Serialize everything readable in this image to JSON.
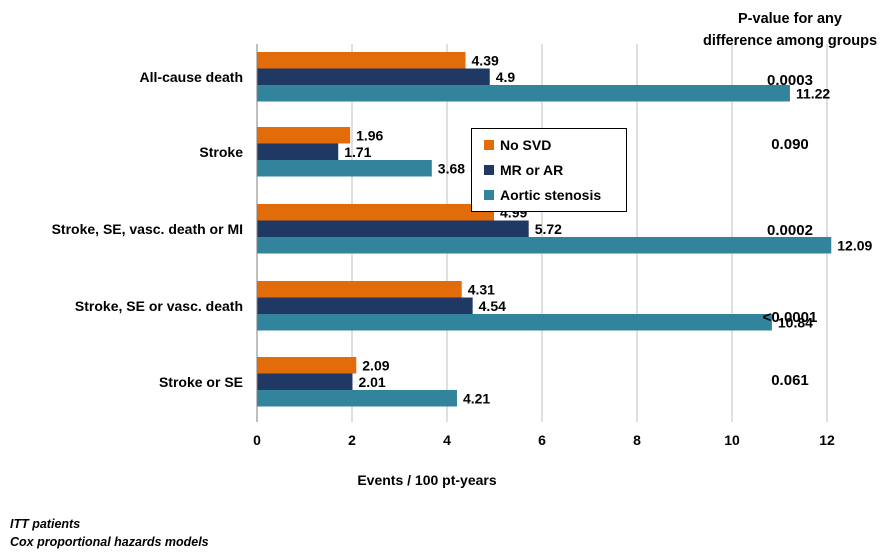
{
  "chart_data": {
    "type": "bar",
    "orientation": "horizontal",
    "categories": [
      "All-cause death",
      "Stroke",
      "Stroke, SE, vasc. death or MI",
      "Stroke, SE or vasc. death",
      "Stroke or SE"
    ],
    "series": [
      {
        "name": "No SVD",
        "color": "#E36C0A",
        "values": [
          4.39,
          1.96,
          4.99,
          4.31,
          2.09
        ]
      },
      {
        "name": "MR or AR",
        "color": "#1F3864",
        "values": [
          4.9,
          1.71,
          5.72,
          4.54,
          2.01
        ]
      },
      {
        "name": "Aortic stenosis",
        "color": "#31849B",
        "values": [
          11.22,
          3.68,
          12.09,
          10.84,
          4.21
        ]
      }
    ],
    "data_labels": [
      [
        "4.39",
        "4.9",
        "11.22"
      ],
      [
        "1.96",
        "1.71",
        "3.68"
      ],
      [
        "4.99",
        "5.72",
        "12.09"
      ],
      [
        "4.31",
        "4.54",
        "10.84"
      ],
      [
        "2.09",
        "2.01",
        "4.21"
      ]
    ],
    "xlabel": "Events / 100 pt-years",
    "xlim": [
      0,
      14
    ],
    "xticks": [
      "0",
      "2",
      "4",
      "6",
      "8",
      "10",
      "12",
      "14"
    ],
    "grid": "vertical",
    "legend_position": "center-right"
  },
  "pvalues": {
    "header_line1": "P-value for any",
    "header_line2": "difference among groups",
    "values": [
      "0.0003",
      "0.090",
      "0.0002",
      "<0.0001",
      "0.061"
    ]
  },
  "footnotes": [
    "ITT patients",
    "Cox proportional  hazards models"
  ]
}
